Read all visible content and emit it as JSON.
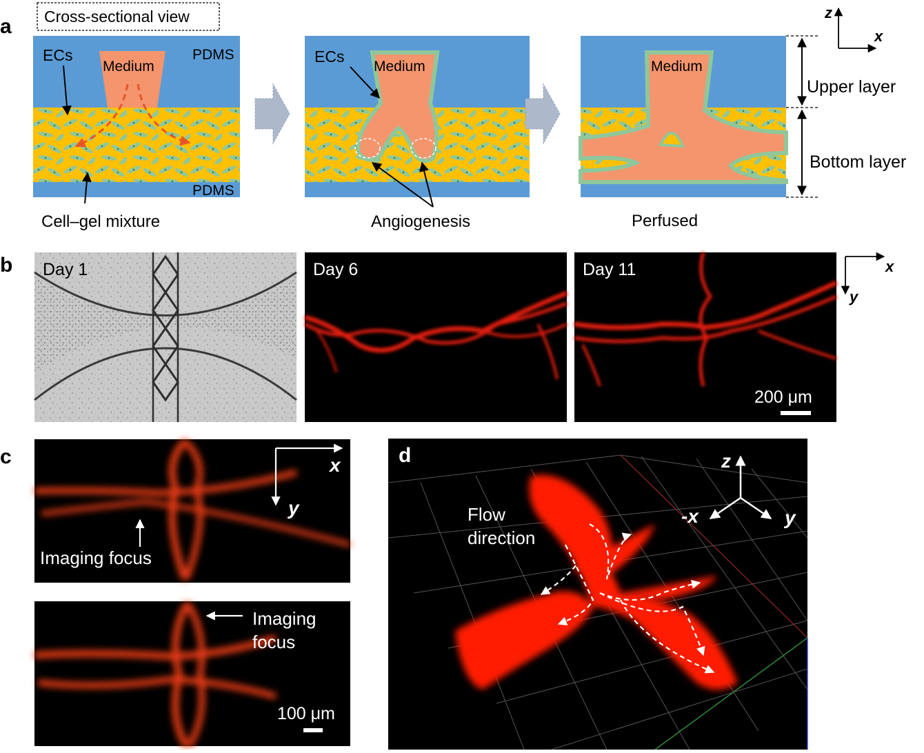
{
  "panel_a": {
    "letter": "a",
    "view_label": "Cross-sectional view",
    "ecs": "ECs",
    "medium": "Medium",
    "pdms": "PDMS",
    "cell_gel": "Cell–gel mixture",
    "angiogenesis": "Angiogenesis",
    "perfused": "Perfused",
    "upper_layer": "Upper layer",
    "bottom_layer": "Bottom layer",
    "axis_z": "z",
    "axis_x": "x",
    "colors": {
      "pdms": "#5b9bd5",
      "gel": "#ffc000",
      "medium": "#f4956e",
      "cells": "#8fc79a"
    }
  },
  "panel_b": {
    "letter": "b",
    "day1": "Day 1",
    "day6": "Day 6",
    "day11": "Day 11",
    "scale": "200 μm",
    "axis_x": "x",
    "axis_y": "y"
  },
  "panel_c": {
    "letter": "c",
    "imaging_focus": "Imaging focus",
    "imaging": "Imaging",
    "focus": "focus",
    "axis_x": "x",
    "axis_y": "y",
    "scale": "100 μm"
  },
  "panel_d": {
    "letter": "d",
    "flow1": "Flow",
    "flow2": "direction",
    "axis_z": "z",
    "axis_x": "-x",
    "axis_y": "y"
  }
}
